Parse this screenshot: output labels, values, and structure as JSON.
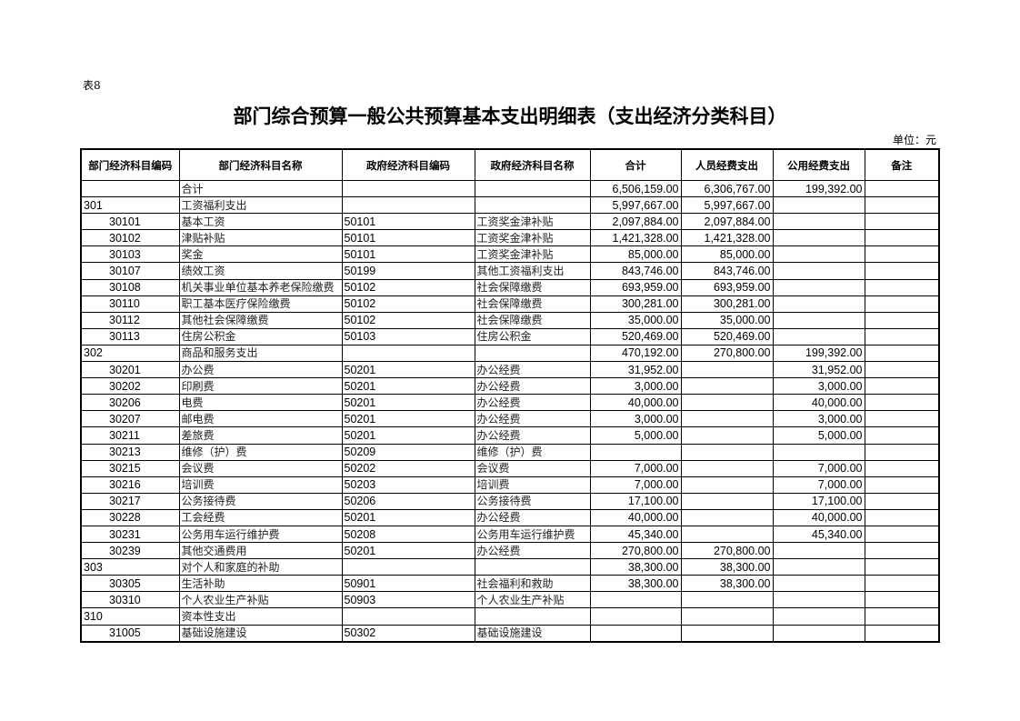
{
  "doc": {
    "table_no": "表8",
    "title": "部门综合预算一般公共预算基本支出明细表（支出经济分类科目）",
    "unit": "单位：元"
  },
  "table": {
    "headers": [
      "部门经济科目编码",
      "部门经济科目名称",
      "政府经济科目编码",
      "政府经济科目名称",
      "合计",
      "人员经费支出",
      "公用经费支出",
      "备注"
    ],
    "rows": [
      {
        "level": 0,
        "dept_code": "",
        "dept_name": "合计",
        "gov_code": "",
        "gov_name": "",
        "total": "6,506,159.00",
        "personnel": "6,306,767.00",
        "public": "199,392.00",
        "note": ""
      },
      {
        "level": 1,
        "dept_code": "301",
        "dept_name": "工资福利支出",
        "gov_code": "",
        "gov_name": "",
        "total": "5,997,667.00",
        "personnel": "5,997,667.00",
        "public": "",
        "note": ""
      },
      {
        "level": 2,
        "dept_code": "30101",
        "dept_name": "基本工资",
        "gov_code": "50101",
        "gov_name": "工资奖金津补贴",
        "total": "2,097,884.00",
        "personnel": "2,097,884.00",
        "public": "",
        "note": ""
      },
      {
        "level": 2,
        "dept_code": "30102",
        "dept_name": "津贴补贴",
        "gov_code": "50101",
        "gov_name": "工资奖金津补贴",
        "total": "1,421,328.00",
        "personnel": "1,421,328.00",
        "public": "",
        "note": ""
      },
      {
        "level": 2,
        "dept_code": "30103",
        "dept_name": "奖金",
        "gov_code": "50101",
        "gov_name": "工资奖金津补贴",
        "total": "85,000.00",
        "personnel": "85,000.00",
        "public": "",
        "note": ""
      },
      {
        "level": 2,
        "dept_code": "30107",
        "dept_name": "绩效工资",
        "gov_code": "50199",
        "gov_name": "其他工资福利支出",
        "total": "843,746.00",
        "personnel": "843,746.00",
        "public": "",
        "note": ""
      },
      {
        "level": 2,
        "dept_code": "30108",
        "dept_name": "机关事业单位基本养老保险缴费",
        "gov_code": "50102",
        "gov_name": "社会保障缴费",
        "total": "693,959.00",
        "personnel": "693,959.00",
        "public": "",
        "note": ""
      },
      {
        "level": 2,
        "dept_code": "30110",
        "dept_name": "职工基本医疗保险缴费",
        "gov_code": "50102",
        "gov_name": "社会保障缴费",
        "total": "300,281.00",
        "personnel": "300,281.00",
        "public": "",
        "note": ""
      },
      {
        "level": 2,
        "dept_code": "30112",
        "dept_name": "其他社会保障缴费",
        "gov_code": "50102",
        "gov_name": "社会保障缴费",
        "total": "35,000.00",
        "personnel": "35,000.00",
        "public": "",
        "note": ""
      },
      {
        "level": 2,
        "dept_code": "30113",
        "dept_name": "住房公积金",
        "gov_code": "50103",
        "gov_name": "住房公积金",
        "total": "520,469.00",
        "personnel": "520,469.00",
        "public": "",
        "note": ""
      },
      {
        "level": 1,
        "dept_code": "302",
        "dept_name": "商品和服务支出",
        "gov_code": "",
        "gov_name": "",
        "total": "470,192.00",
        "personnel": "270,800.00",
        "public": "199,392.00",
        "note": ""
      },
      {
        "level": 2,
        "dept_code": "30201",
        "dept_name": "办公费",
        "gov_code": "50201",
        "gov_name": "办公经费",
        "total": "31,952.00",
        "personnel": "",
        "public": "31,952.00",
        "note": ""
      },
      {
        "level": 2,
        "dept_code": "30202",
        "dept_name": "印刷费",
        "gov_code": "50201",
        "gov_name": "办公经费",
        "total": "3,000.00",
        "personnel": "",
        "public": "3,000.00",
        "note": ""
      },
      {
        "level": 2,
        "dept_code": "30206",
        "dept_name": "电费",
        "gov_code": "50201",
        "gov_name": "办公经费",
        "total": "40,000.00",
        "personnel": "",
        "public": "40,000.00",
        "note": ""
      },
      {
        "level": 2,
        "dept_code": "30207",
        "dept_name": "邮电费",
        "gov_code": "50201",
        "gov_name": "办公经费",
        "total": "3,000.00",
        "personnel": "",
        "public": "3,000.00",
        "note": ""
      },
      {
        "level": 2,
        "dept_code": "30211",
        "dept_name": "差旅费",
        "gov_code": "50201",
        "gov_name": "办公经费",
        "total": "5,000.00",
        "personnel": "",
        "public": "5,000.00",
        "note": ""
      },
      {
        "level": 2,
        "dept_code": "30213",
        "dept_name": "维修（护）费",
        "gov_code": "50209",
        "gov_name": "维修（护）费",
        "total": "",
        "personnel": "",
        "public": "",
        "note": ""
      },
      {
        "level": 2,
        "dept_code": "30215",
        "dept_name": "会议费",
        "gov_code": "50202",
        "gov_name": "会议费",
        "total": "7,000.00",
        "personnel": "",
        "public": "7,000.00",
        "note": ""
      },
      {
        "level": 2,
        "dept_code": "30216",
        "dept_name": "培训费",
        "gov_code": "50203",
        "gov_name": "培训费",
        "total": "7,000.00",
        "personnel": "",
        "public": "7,000.00",
        "note": ""
      },
      {
        "level": 2,
        "dept_code": "30217",
        "dept_name": "公务接待费",
        "gov_code": "50206",
        "gov_name": "公务接待费",
        "total": "17,100.00",
        "personnel": "",
        "public": "17,100.00",
        "note": ""
      },
      {
        "level": 2,
        "dept_code": "30228",
        "dept_name": "工会经费",
        "gov_code": "50201",
        "gov_name": "办公经费",
        "total": "40,000.00",
        "personnel": "",
        "public": "40,000.00",
        "note": ""
      },
      {
        "level": 2,
        "dept_code": "30231",
        "dept_name": "公务用车运行维护费",
        "gov_code": "50208",
        "gov_name": "公务用车运行维护费",
        "total": "45,340.00",
        "personnel": "",
        "public": "45,340.00",
        "note": ""
      },
      {
        "level": 2,
        "dept_code": "30239",
        "dept_name": "其他交通费用",
        "gov_code": "50201",
        "gov_name": "办公经费",
        "total": "270,800.00",
        "personnel": "270,800.00",
        "public": "",
        "note": ""
      },
      {
        "level": 1,
        "dept_code": "303",
        "dept_name": "对个人和家庭的补助",
        "gov_code": "",
        "gov_name": "",
        "total": "38,300.00",
        "personnel": "38,300.00",
        "public": "",
        "note": ""
      },
      {
        "level": 2,
        "dept_code": "30305",
        "dept_name": "生活补助",
        "gov_code": "50901",
        "gov_name": "社会福利和救助",
        "total": "38,300.00",
        "personnel": "38,300.00",
        "public": "",
        "note": ""
      },
      {
        "level": 2,
        "dept_code": "30310",
        "dept_name": "个人农业生产补贴",
        "gov_code": "50903",
        "gov_name": "个人农业生产补贴",
        "total": "",
        "personnel": "",
        "public": "",
        "note": ""
      },
      {
        "level": 1,
        "dept_code": "310",
        "dept_name": "资本性支出",
        "gov_code": "",
        "gov_name": "",
        "total": "",
        "personnel": "",
        "public": "",
        "note": ""
      },
      {
        "level": 2,
        "dept_code": "31005",
        "dept_name": "基础设施建设",
        "gov_code": "50302",
        "gov_name": "基础设施建设",
        "total": "",
        "personnel": "",
        "public": "",
        "note": ""
      }
    ]
  }
}
